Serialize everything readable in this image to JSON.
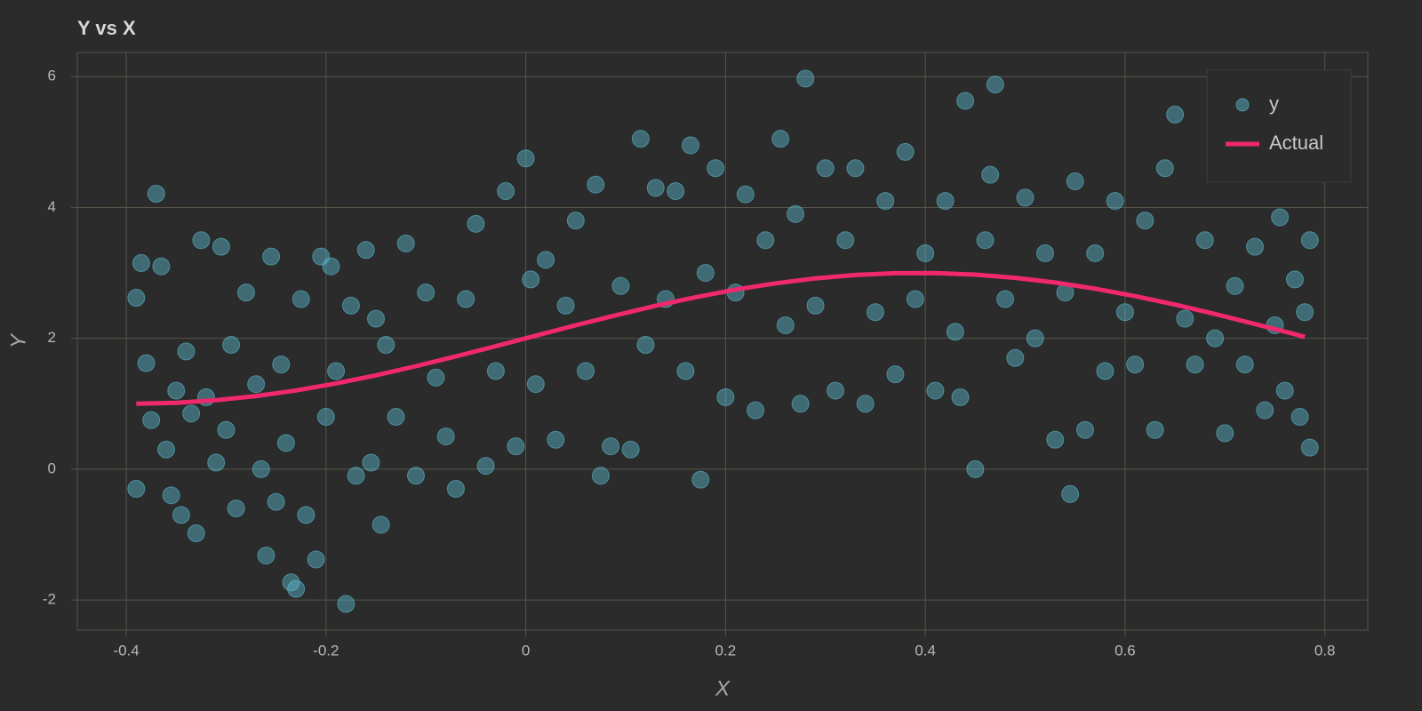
{
  "chart_data": {
    "type": "scatter",
    "title": "Y vs X",
    "x_label": "X",
    "y_label": "Y",
    "xlim": [
      -0.449,
      0.843
    ],
    "ylim": [
      -2.46,
      6.37
    ],
    "xticks": [
      -0.4,
      -0.2,
      0,
      0.2,
      0.4,
      0.6,
      0.8
    ],
    "yticks": [
      -2,
      0,
      2,
      4,
      6
    ],
    "grid": true,
    "legend": "top-right",
    "series": [
      {
        "name": "y",
        "type": "scatter",
        "color": "#5cc3d9",
        "x": [
          -0.39,
          -0.39,
          -0.385,
          -0.38,
          -0.375,
          -0.37,
          -0.365,
          -0.36,
          -0.355,
          -0.35,
          -0.345,
          -0.34,
          -0.335,
          -0.33,
          -0.325,
          -0.32,
          -0.31,
          -0.305,
          -0.3,
          -0.295,
          -0.29,
          -0.28,
          -0.27,
          -0.265,
          -0.26,
          -0.255,
          -0.25,
          -0.245,
          -0.24,
          -0.235,
          -0.23,
          -0.225,
          -0.22,
          -0.21,
          -0.205,
          -0.2,
          -0.195,
          -0.19,
          -0.18,
          -0.175,
          -0.17,
          -0.16,
          -0.155,
          -0.15,
          -0.145,
          -0.14,
          -0.13,
          -0.12,
          -0.11,
          -0.1,
          -0.09,
          -0.08,
          -0.07,
          -0.06,
          -0.05,
          -0.04,
          -0.03,
          -0.02,
          -0.01,
          0,
          0.005,
          0.01,
          0.02,
          0.03,
          0.04,
          0.05,
          0.06,
          0.07,
          0.075,
          0.085,
          0.095,
          0.105,
          0.115,
          0.12,
          0.13,
          0.14,
          0.15,
          0.16,
          0.165,
          0.175,
          0.18,
          0.19,
          0.2,
          0.21,
          0.22,
          0.23,
          0.24,
          0.255,
          0.26,
          0.27,
          0.275,
          0.28,
          0.29,
          0.3,
          0.31,
          0.32,
          0.33,
          0.34,
          0.35,
          0.36,
          0.37,
          0.38,
          0.39,
          0.4,
          0.41,
          0.42,
          0.43,
          0.435,
          0.44,
          0.45,
          0.46,
          0.465,
          0.47,
          0.48,
          0.49,
          0.5,
          0.51,
          0.52,
          0.53,
          0.54,
          0.545,
          0.55,
          0.56,
          0.57,
          0.58,
          0.59,
          0.6,
          0.61,
          0.62,
          0.63,
          0.64,
          0.65,
          0.66,
          0.67,
          0.68,
          0.69,
          0.7,
          0.71,
          0.72,
          0.73,
          0.74,
          0.75,
          0.755,
          0.76,
          0.77,
          0.775,
          0.78,
          0.785,
          0.785
        ],
        "values": [
          2.62,
          -0.3,
          3.15,
          1.62,
          0.75,
          4.21,
          3.1,
          0.3,
          -0.4,
          1.2,
          -0.7,
          1.8,
          0.85,
          -0.98,
          3.5,
          1.1,
          0.1,
          3.4,
          0.6,
          1.9,
          -0.6,
          2.7,
          1.3,
          0,
          -1.32,
          3.25,
          -0.5,
          1.6,
          0.4,
          -1.73,
          -1.83,
          2.6,
          -0.7,
          -1.38,
          3.25,
          0.8,
          3.1,
          1.5,
          -2.06,
          2.5,
          -0.1,
          3.35,
          0.1,
          2.3,
          -0.85,
          1.9,
          0.8,
          3.45,
          -0.1,
          2.7,
          1.4,
          0.5,
          -0.3,
          2.6,
          3.75,
          0.05,
          1.5,
          4.25,
          0.35,
          4.75,
          2.9,
          1.3,
          3.2,
          0.45,
          2.5,
          3.8,
          1.5,
          4.35,
          -0.1,
          0.35,
          2.8,
          0.3,
          5.05,
          1.9,
          4.3,
          2.6,
          4.25,
          1.5,
          4.95,
          -0.16,
          3,
          4.6,
          1.1,
          2.7,
          4.2,
          0.9,
          3.5,
          5.05,
          2.2,
          3.9,
          1,
          5.97,
          2.5,
          4.6,
          1.2,
          3.5,
          4.6,
          1,
          2.4,
          4.1,
          1.45,
          4.85,
          2.6,
          3.3,
          1.2,
          4.1,
          2.1,
          1.1,
          5.63,
          0,
          3.5,
          4.5,
          5.88,
          2.6,
          1.7,
          4.15,
          2,
          3.3,
          0.45,
          2.7,
          -0.38,
          4.4,
          0.6,
          3.3,
          1.5,
          4.1,
          2.4,
          1.6,
          3.8,
          0.6,
          4.6,
          5.42,
          2.3,
          1.6,
          3.5,
          2,
          0.55,
          2.8,
          1.6,
          3.4,
          0.9,
          2.2,
          3.85,
          1.2,
          2.9,
          0.8,
          2.4,
          0.33,
          3.5
        ]
      },
      {
        "name": "Actual",
        "type": "line",
        "color": "#f0286e",
        "x": [
          -0.39,
          -0.35,
          -0.31,
          -0.27,
          -0.23,
          -0.19,
          -0.15,
          -0.11,
          -0.07,
          -0.03,
          0.01,
          0.05,
          0.09,
          0.13,
          0.17,
          0.21,
          0.25,
          0.29,
          0.33,
          0.37,
          0.41,
          0.45,
          0.49,
          0.53,
          0.57,
          0.61,
          0.65,
          0.69,
          0.73,
          0.77,
          0.78
        ],
        "values": [
          1.0,
          1.015,
          1.054,
          1.118,
          1.204,
          1.311,
          1.435,
          1.574,
          1.724,
          1.88,
          2.04,
          2.199,
          2.352,
          2.497,
          2.629,
          2.745,
          2.841,
          2.917,
          2.969,
          2.996,
          2.998,
          2.974,
          2.925,
          2.853,
          2.759,
          2.645,
          2.516,
          2.372,
          2.219,
          2.062,
          2.022
        ]
      }
    ]
  }
}
